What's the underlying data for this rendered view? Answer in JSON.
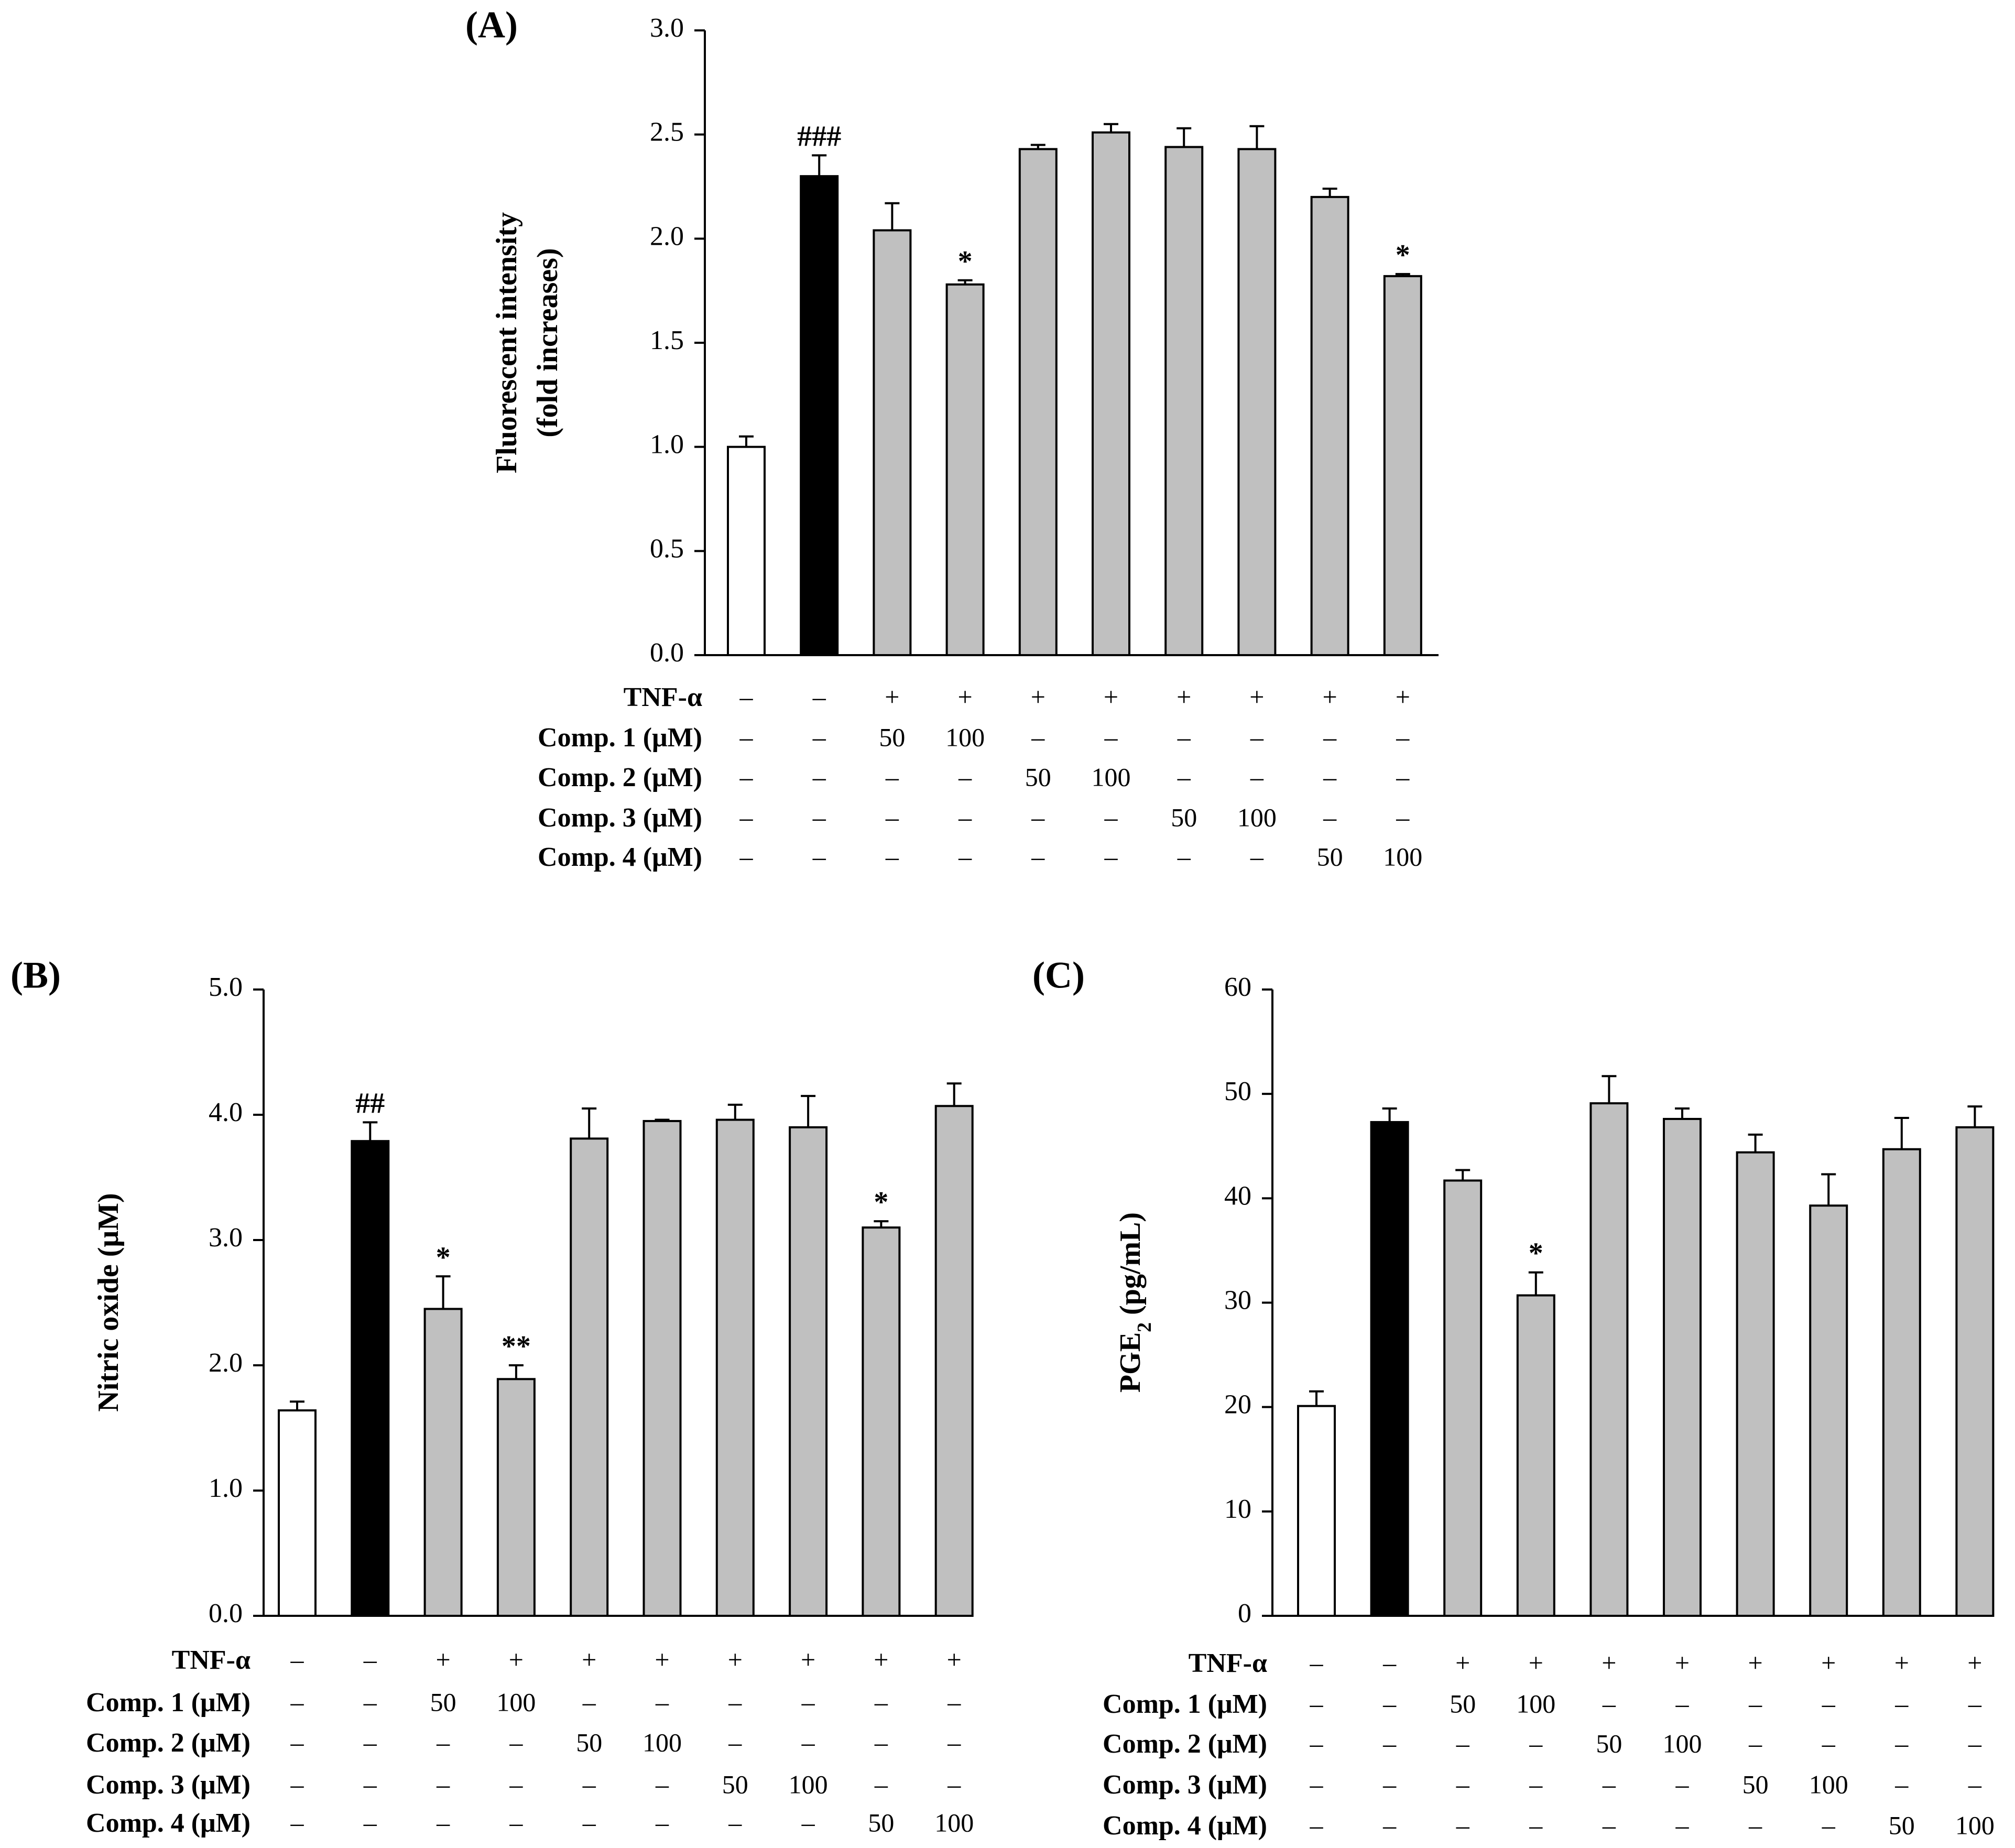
{
  "chart_data": [
    {
      "type": "bar",
      "panel_label": "(A)",
      "ylabel_line1": "Fluorescent intensity",
      "ylabel_line2": "(fold increases)",
      "ylim": [
        0,
        3.0
      ],
      "yticks": [
        "0.0",
        "0.5",
        "1.0",
        "1.5",
        "2.0",
        "2.5",
        "3.0"
      ],
      "values": [
        1.0,
        2.3,
        2.04,
        1.78,
        2.43,
        2.51,
        2.44,
        2.43,
        2.2,
        1.82
      ],
      "errors": [
        0.05,
        0.1,
        0.13,
        0.02,
        0.02,
        0.04,
        0.09,
        0.11,
        0.04,
        0.01
      ],
      "fills": [
        "#ffffff",
        "#000000",
        "#c0c0c0",
        "#c0c0c0",
        "#c0c0c0",
        "#c0c0c0",
        "#c0c0c0",
        "#c0c0c0",
        "#c0c0c0",
        "#c0c0c0"
      ],
      "annotations": [
        "",
        "###",
        "",
        "*",
        "",
        "",
        "",
        "",
        "",
        "*"
      ],
      "treatment_rows": [
        {
          "label": "TNF-α",
          "cells": [
            "–",
            "–",
            "+",
            "+",
            "+",
            "+",
            "+",
            "+",
            "+",
            "+"
          ]
        },
        {
          "label": "Comp. 1 (μM)",
          "cells": [
            "–",
            "–",
            "50",
            "100",
            "–",
            "–",
            "–",
            "–",
            "–",
            "–"
          ]
        },
        {
          "label": "Comp. 2 (μM)",
          "cells": [
            "–",
            "–",
            "–",
            "–",
            "50",
            "100",
            "–",
            "–",
            "–",
            "–"
          ]
        },
        {
          "label": "Comp. 3 (μM)",
          "cells": [
            "–",
            "–",
            "–",
            "–",
            "–",
            "–",
            "50",
            "100",
            "–",
            "–"
          ]
        },
        {
          "label": "Comp. 4 (μM)",
          "cells": [
            "–",
            "–",
            "–",
            "–",
            "–",
            "–",
            "–",
            "–",
            "50",
            "100"
          ]
        }
      ]
    },
    {
      "type": "bar",
      "panel_label": "(B)",
      "ylabel_line1": "Nitric oxide (μM)",
      "ylabel_line2": "",
      "ylim": [
        0,
        5.0
      ],
      "yticks": [
        "0.0",
        "1.0",
        "2.0",
        "3.0",
        "4.0",
        "5.0"
      ],
      "values": [
        1.64,
        3.79,
        2.45,
        1.89,
        3.81,
        3.95,
        3.96,
        3.9,
        3.1,
        4.07
      ],
      "errors": [
        0.07,
        0.15,
        0.26,
        0.11,
        0.24,
        0.01,
        0.12,
        0.25,
        0.05,
        0.18
      ],
      "fills": [
        "#ffffff",
        "#000000",
        "#c0c0c0",
        "#c0c0c0",
        "#c0c0c0",
        "#c0c0c0",
        "#c0c0c0",
        "#c0c0c0",
        "#c0c0c0",
        "#c0c0c0"
      ],
      "annotations": [
        "",
        "##",
        "*",
        "**",
        "",
        "",
        "",
        "",
        "*",
        ""
      ],
      "treatment_rows": [
        {
          "label": "TNF-α",
          "cells": [
            "–",
            "–",
            "+",
            "+",
            "+",
            "+",
            "+",
            "+",
            "+",
            "+"
          ]
        },
        {
          "label": "Comp. 1 (μM)",
          "cells": [
            "–",
            "–",
            "50",
            "100",
            "–",
            "–",
            "–",
            "–",
            "–",
            "–"
          ]
        },
        {
          "label": "Comp. 2 (μM)",
          "cells": [
            "–",
            "–",
            "–",
            "–",
            "50",
            "100",
            "–",
            "–",
            "–",
            "–"
          ]
        },
        {
          "label": "Comp. 3 (μM)",
          "cells": [
            "–",
            "–",
            "–",
            "–",
            "–",
            "–",
            "50",
            "100",
            "–",
            "–"
          ]
        },
        {
          "label": "Comp. 4 (μM)",
          "cells": [
            "–",
            "–",
            "–",
            "–",
            "–",
            "–",
            "–",
            "–",
            "50",
            "100"
          ]
        }
      ]
    },
    {
      "type": "bar",
      "panel_label": "(C)",
      "ylabel_line1": "PGE",
      "ylabel_sub": "2",
      "ylabel_rest": " (pg/mL)",
      "ylabel_line2": "",
      "ylim": [
        0,
        60
      ],
      "yticks": [
        "0",
        "10",
        "20",
        "30",
        "40",
        "50",
        "60"
      ],
      "values": [
        20.1,
        47.3,
        41.7,
        30.7,
        49.1,
        47.6,
        44.4,
        39.3,
        44.7,
        46.8
      ],
      "errors": [
        1.4,
        1.3,
        1.0,
        2.2,
        2.6,
        1.0,
        1.7,
        3.0,
        3.0,
        2.0
      ],
      "fills": [
        "#ffffff",
        "#000000",
        "#c0c0c0",
        "#c0c0c0",
        "#c0c0c0",
        "#c0c0c0",
        "#c0c0c0",
        "#c0c0c0",
        "#c0c0c0",
        "#c0c0c0"
      ],
      "annotations": [
        "",
        "",
        "",
        "*",
        "",
        "",
        "",
        "",
        "",
        ""
      ],
      "treatment_rows": [
        {
          "label": "TNF-α",
          "cells": [
            "–",
            "–",
            "+",
            "+",
            "+",
            "+",
            "+",
            "+",
            "+",
            "+"
          ]
        },
        {
          "label": "Comp. 1 (μM)",
          "cells": [
            "–",
            "–",
            "50",
            "100",
            "–",
            "–",
            "–",
            "–",
            "–",
            "–"
          ]
        },
        {
          "label": "Comp. 2 (μM)",
          "cells": [
            "–",
            "–",
            "–",
            "–",
            "50",
            "100",
            "–",
            "–",
            "–",
            "–"
          ]
        },
        {
          "label": "Comp. 3 (μM)",
          "cells": [
            "–",
            "–",
            "–",
            "–",
            "–",
            "–",
            "50",
            "100",
            "–",
            "–"
          ]
        },
        {
          "label": "Comp. 4 (μM)",
          "cells": [
            "–",
            "–",
            "–",
            "–",
            "–",
            "–",
            "–",
            "–",
            "50",
            "100"
          ]
        }
      ]
    }
  ]
}
